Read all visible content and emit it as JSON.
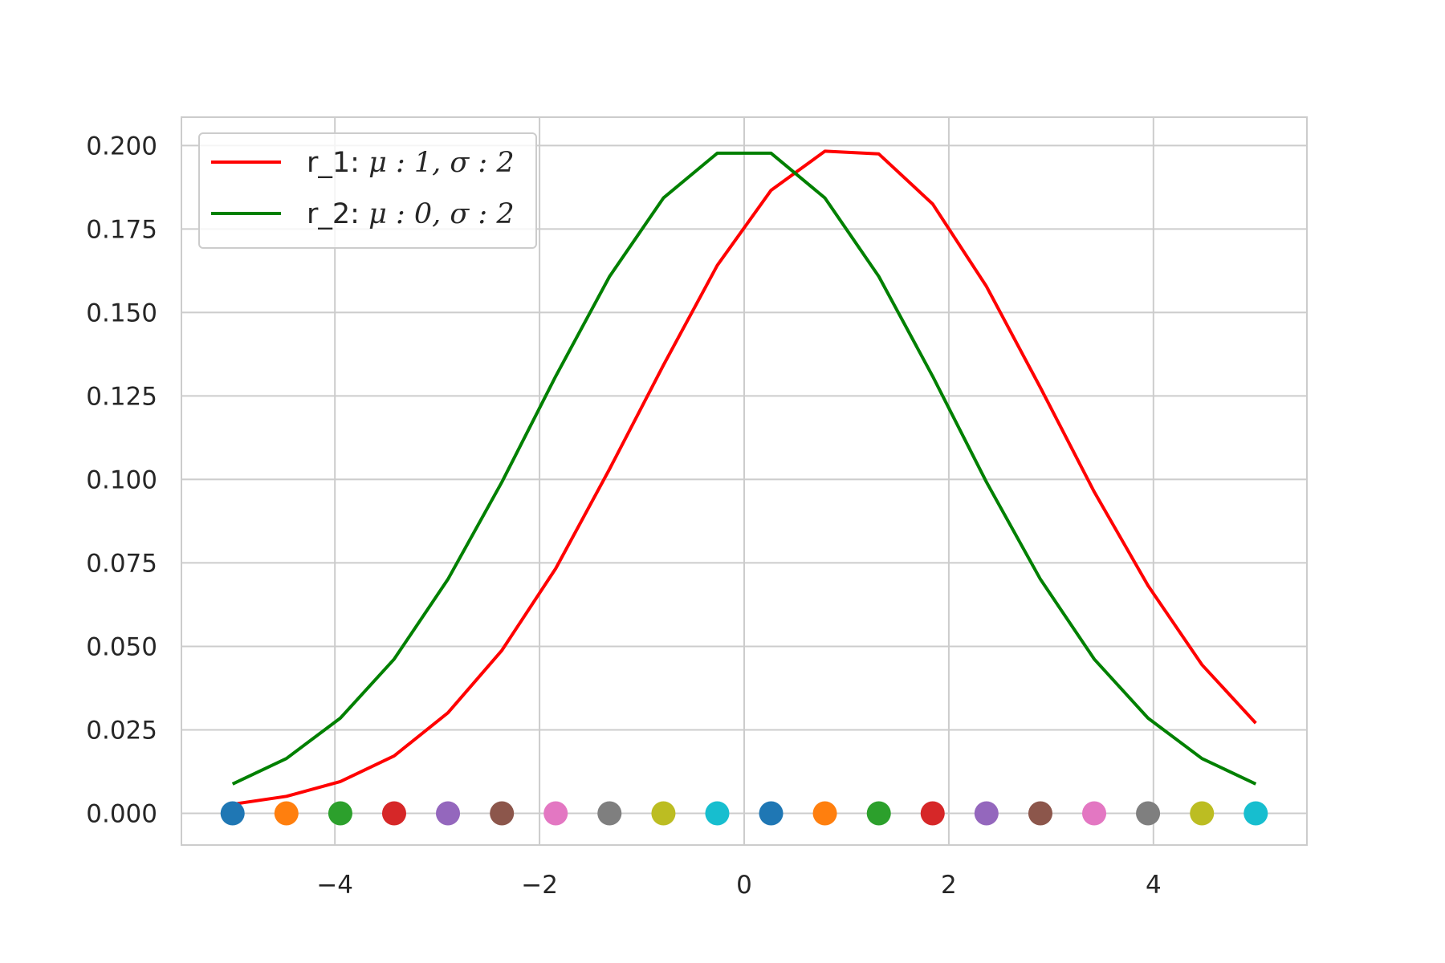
{
  "chart_data": {
    "type": "line",
    "title": "",
    "xlabel": "",
    "ylabel": "",
    "xlim": [
      -5.5,
      5.5
    ],
    "ylim": [
      -0.0095,
      0.2085
    ],
    "grid": true,
    "legend_position": "top-left",
    "x_ticks": [
      -4,
      -2,
      0,
      2,
      4
    ],
    "x_tick_labels": [
      "−4",
      "−2",
      "0",
      "2",
      "4"
    ],
    "y_ticks": [
      0.0,
      0.025,
      0.05,
      0.075,
      0.1,
      0.125,
      0.15,
      0.175,
      0.2
    ],
    "y_tick_labels": [
      "0.000",
      "0.025",
      "0.050",
      "0.075",
      "0.100",
      "0.125",
      "0.150",
      "0.175",
      "0.200"
    ],
    "x": [
      -5.0,
      -4.474,
      -3.947,
      -3.421,
      -2.895,
      -2.368,
      -1.842,
      -1.316,
      -0.789,
      -0.263,
      0.263,
      0.789,
      1.316,
      1.842,
      2.368,
      2.895,
      3.421,
      3.947,
      4.474,
      5.0
    ],
    "series": [
      {
        "name": "r_1: μ : 1, σ : 2",
        "legend_prefix": "r_1: ",
        "legend_math": "μ : 1, σ : 2",
        "color": "#ff0000",
        "values": [
          0.0027,
          0.0051,
          0.0095,
          0.0172,
          0.0301,
          0.0488,
          0.0733,
          0.1031,
          0.1342,
          0.1641,
          0.1866,
          0.1983,
          0.1975,
          0.1825,
          0.1578,
          0.1275,
          0.0963,
          0.0682,
          0.0445,
          0.027
        ]
      },
      {
        "name": "r_2: μ : 0, σ : 2",
        "legend_prefix": "r_2: ",
        "legend_math": "μ : 0, σ : 2",
        "color": "#008000",
        "values": [
          0.0088,
          0.0164,
          0.0285,
          0.0462,
          0.0701,
          0.0992,
          0.1309,
          0.1608,
          0.1843,
          0.1977,
          0.1977,
          0.1843,
          0.1608,
          0.1309,
          0.0992,
          0.0701,
          0.0462,
          0.0285,
          0.0164,
          0.0088
        ]
      }
    ],
    "markers": {
      "y": 0,
      "colors": [
        "#1f77b4",
        "#ff7f0e",
        "#2ca02c",
        "#d62728",
        "#9467bd",
        "#8c564b",
        "#e377c2",
        "#7f7f7f",
        "#bcbd22",
        "#17becf",
        "#1f77b4",
        "#ff7f0e",
        "#2ca02c",
        "#d62728",
        "#9467bd",
        "#8c564b",
        "#e377c2",
        "#7f7f7f",
        "#bcbd22",
        "#17becf"
      ]
    }
  }
}
